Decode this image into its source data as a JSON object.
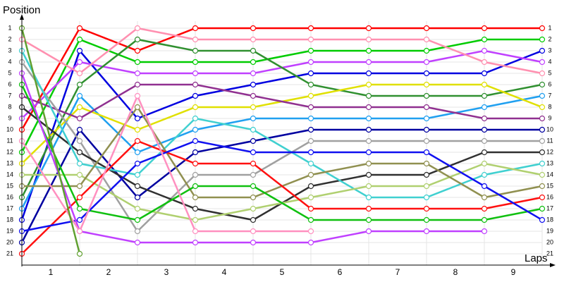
{
  "chart_data": {
    "type": "line",
    "y_axis_label": "Position",
    "x_axis_label": "Laps",
    "x": [
      0,
      1,
      2,
      3,
      4,
      5,
      6,
      7,
      8,
      9
    ],
    "xlim": [
      0,
      9
    ],
    "ylim": [
      1,
      21
    ],
    "xticks": [
      {
        "value": 0.5,
        "label": "1"
      },
      {
        "value": 1.5,
        "label": "2"
      },
      {
        "value": 2.5,
        "label": "3"
      },
      {
        "value": 3.5,
        "label": "4"
      },
      {
        "value": 4.5,
        "label": "5"
      },
      {
        "value": 5.5,
        "label": "6"
      },
      {
        "value": 6.5,
        "label": "7"
      },
      {
        "value": 7.5,
        "label": "8"
      },
      {
        "value": 8.5,
        "label": "9"
      }
    ],
    "yticks": [
      1,
      2,
      3,
      4,
      5,
      6,
      7,
      8,
      9,
      10,
      11,
      12,
      13,
      14,
      15,
      16,
      17,
      18,
      19,
      20,
      21
    ],
    "y_inverted": true,
    "grid": true,
    "series": [
      {
        "color": "#ff0000",
        "values": [
          10,
          1,
          3,
          1,
          1,
          1,
          1,
          1,
          1,
          1
        ]
      },
      {
        "color": "#00cc00",
        "values": [
          12,
          2,
          4,
          4,
          4,
          3,
          3,
          3,
          2,
          2
        ]
      },
      {
        "color": "#0000e0",
        "values": [
          18,
          3,
          9,
          7,
          6,
          5,
          5,
          5,
          5,
          3
        ]
      },
      {
        "color": "#c040ff",
        "values": [
          9,
          4,
          5,
          5,
          5,
          4,
          4,
          4,
          3,
          4
        ]
      },
      {
        "color": "#ff90b0",
        "values": [
          2,
          5,
          1,
          2,
          2,
          2,
          2,
          2,
          4,
          5
        ]
      },
      {
        "color": "#309030",
        "values": [
          16,
          6,
          2,
          3,
          3,
          6,
          7,
          7,
          7,
          6
        ]
      },
      {
        "color": "#20a0f0",
        "values": [
          17,
          7,
          12,
          10,
          9,
          9,
          9,
          9,
          8,
          7
        ]
      },
      {
        "color": "#e0e000",
        "values": [
          13,
          8,
          10,
          8,
          8,
          7,
          6,
          6,
          6,
          8
        ]
      },
      {
        "color": "#903090",
        "values": [
          7,
          9,
          6,
          6,
          7,
          8,
          8,
          8,
          9,
          9
        ]
      },
      {
        "color": "#0000a0",
        "values": [
          20,
          10,
          16,
          12,
          11,
          10,
          10,
          10,
          10,
          10
        ]
      },
      {
        "color": "#a0a0a0",
        "values": [
          4,
          11,
          19,
          14,
          14,
          11,
          11,
          11,
          11,
          11
        ]
      },
      {
        "color": "#303030",
        "values": [
          8,
          12,
          15,
          17,
          18,
          15,
          14,
          14,
          12,
          12
        ]
      },
      {
        "color": "#40d0d0",
        "values": [
          3,
          13,
          14,
          9,
          10,
          13,
          16,
          16,
          14,
          13
        ]
      },
      {
        "color": "#b0d070",
        "values": [
          14,
          14,
          17,
          18,
          17,
          16,
          15,
          15,
          13,
          14
        ]
      },
      {
        "color": "#909050",
        "values": [
          15,
          15,
          8,
          16,
          16,
          14,
          13,
          13,
          16,
          15
        ]
      },
      {
        "color": "#ff1010",
        "values": [
          21,
          16,
          11,
          13,
          13,
          17,
          17,
          17,
          17,
          16
        ]
      },
      {
        "color": "#10c010",
        "values": [
          6,
          17,
          18,
          15,
          15,
          18,
          18,
          18,
          18,
          17
        ]
      },
      {
        "color": "#1010f0",
        "values": [
          19,
          18,
          13,
          11,
          12,
          12,
          12,
          12,
          15,
          18
        ]
      },
      {
        "color": "#c040ff",
        "values": [
          5,
          19,
          20,
          20,
          20,
          20,
          19,
          19,
          19,
          null
        ]
      },
      {
        "color": "#ff90c0",
        "values": [
          11,
          19,
          7,
          19,
          19,
          19,
          null,
          null,
          null,
          null
        ]
      },
      {
        "color": "#60a030",
        "values": [
          1,
          21,
          null,
          null,
          null,
          null,
          null,
          null,
          null,
          null
        ]
      }
    ]
  }
}
